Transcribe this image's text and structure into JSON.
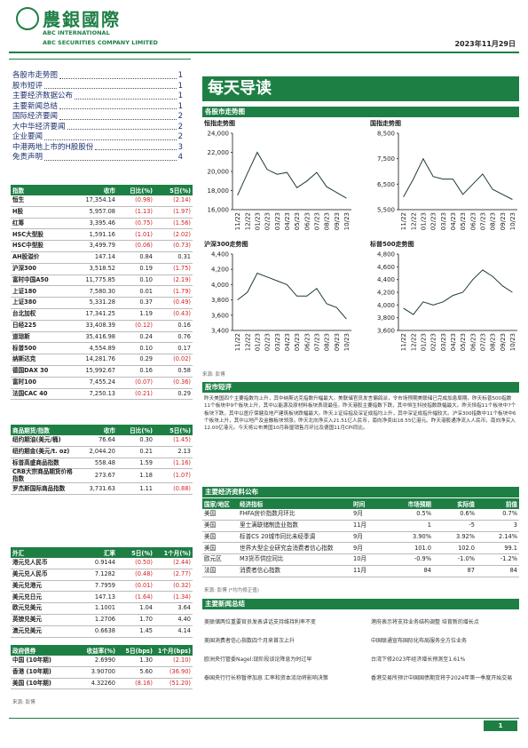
{
  "header": {
    "logo": "農銀國際",
    "company_en1": "ABC INTERNATIONAL",
    "company_en2": "ABC SECURITIES COMPANY LIMITED",
    "date": "2023年11月29日"
  },
  "toc": [
    {
      "label": "各股市走势图",
      "page": "1"
    },
    {
      "label": "股市短评",
      "page": "1"
    },
    {
      "label": "主要经济数据公布",
      "page": "1"
    },
    {
      "label": "主要新闻总结",
      "page": "1"
    },
    {
      "label": "国际经济要闻",
      "page": "2"
    },
    {
      "label": "大中华经济要闻",
      "page": "2"
    },
    {
      "label": "企业要闻",
      "page": "2"
    },
    {
      "label": "中港两地上市的H股股份",
      "page": "3"
    },
    {
      "label": "免责声明",
      "page": "4"
    }
  ],
  "title": "每天导读",
  "charts_section": "各股市走势图",
  "chart_data": [
    {
      "type": "line",
      "title": "恒指走势图",
      "color": "#1f3d28",
      "categories": [
        "11/22",
        "12/22",
        "01/23",
        "02/23",
        "03/23",
        "04/23",
        "05/23",
        "06/23",
        "07/23",
        "08/23",
        "09/23",
        "10/23"
      ],
      "values": [
        17500,
        19800,
        22000,
        20200,
        19700,
        19900,
        18300,
        19000,
        19900,
        18400,
        17800,
        17200
      ],
      "ylim": [
        16000,
        24000
      ],
      "yticks": [
        {
          "value": 16000,
          "label": "16,000"
        },
        {
          "value": 18000,
          "label": "18,000"
        },
        {
          "value": 20000,
          "label": "20,000"
        },
        {
          "value": 22000,
          "label": "22,000"
        },
        {
          "value": 24000,
          "label": "24,000"
        }
      ]
    },
    {
      "type": "line",
      "title": "国指走势图",
      "color": "#1f3d28",
      "categories": [
        "11/22",
        "12/22",
        "01/23",
        "02/23",
        "03/23",
        "04/23",
        "05/23",
        "06/23",
        "07/23",
        "08/23",
        "09/23",
        "10/23"
      ],
      "values": [
        6000,
        6700,
        7500,
        6800,
        6700,
        6700,
        6100,
        6500,
        6900,
        6300,
        6100,
        5900
      ],
      "ylim": [
        5500,
        8500
      ],
      "yticks": [
        {
          "value": 5500,
          "label": "5,500"
        },
        {
          "value": 6500,
          "label": "6,500"
        },
        {
          "value": 7500,
          "label": "7,500"
        },
        {
          "value": 8500,
          "label": "8,500"
        }
      ]
    },
    {
      "type": "line",
      "title": "沪深300走势图",
      "color": "#1f3d28",
      "categories": [
        "11/22",
        "12/22",
        "01/23",
        "02/23",
        "03/23",
        "04/23",
        "05/23",
        "06/23",
        "07/23",
        "08/23",
        "09/23",
        "10/23"
      ],
      "values": [
        3800,
        3900,
        4150,
        4100,
        4050,
        4000,
        3850,
        3850,
        3950,
        3750,
        3700,
        3550
      ],
      "ylim": [
        3400,
        4400
      ],
      "yticks": [
        {
          "value": 3400,
          "label": "3,400"
        },
        {
          "value": 3600,
          "label": "3,600"
        },
        {
          "value": 3800,
          "label": "3,800"
        },
        {
          "value": 4000,
          "label": "4,000"
        },
        {
          "value": 4200,
          "label": "4,200"
        },
        {
          "value": 4400,
          "label": "4,400"
        }
      ]
    },
    {
      "type": "line",
      "title": "标普500走势图",
      "color": "#1f3d28",
      "categories": [
        "11/22",
        "12/22",
        "01/23",
        "02/23",
        "03/23",
        "04/23",
        "05/23",
        "06/23",
        "07/23",
        "08/23",
        "09/23",
        "10/23"
      ],
      "values": [
        3950,
        3850,
        4050,
        4000,
        4050,
        4150,
        4200,
        4400,
        4550,
        4450,
        4300,
        4200
      ],
      "ylim": [
        3600,
        4800
      ],
      "yticks": [
        {
          "value": 3600,
          "label": "3,600"
        },
        {
          "value": 3800,
          "label": "3,800"
        },
        {
          "value": 4000,
          "label": "4,000"
        },
        {
          "value": 4200,
          "label": "4,200"
        },
        {
          "value": 4400,
          "label": "4,400"
        },
        {
          "value": 4600,
          "label": "4,600"
        },
        {
          "value": 4800,
          "label": "4,800"
        }
      ]
    }
  ],
  "charts_source": "来源: 彭博",
  "commentary": {
    "heading": "股市短评",
    "text": "昨天美国四个主要指数均上升，其中纳斯达克指数升幅最大。美联储官员发言偏鸽派，令市场预期美联储已完成加息周期。昨天标普500指数11个板块中9个板块上升，其中以能源及原材料板块表现最佳。昨天港股主要指数下跌，其中恒生科技指数跌幅最大。昨天恒指11个板块中7个板块下跌，其中以医疗保健及地产建筑板块跌幅最大。昨天上证综指及深证成指均上升，其中深证成指升幅较大。沪深300指数中11个板块中6个板块上升，其中以地产及金融板块领涨。昨天北向净买入21.51亿人民币，南向净卖出18.55亿港元。昨天港股通净流入人民币，南向净买入12.00亿港元。今天将公布美国10月新屋销售月环比及德国11月CPI同比。"
  },
  "index_table": {
    "header": [
      "指数",
      "收市",
      "日比(%)",
      "5日(%)"
    ],
    "rows": [
      [
        "恒生",
        "17,354.14",
        "(0.98)",
        "(2.14)"
      ],
      [
        "H股",
        "5,957.08",
        "(1.13)",
        "(1.97)"
      ],
      [
        "红筹",
        "3,395.46",
        "(0.75)",
        "(1.56)"
      ],
      [
        "HSC大型股",
        "1,591.16",
        "(1.01)",
        "(2.02)"
      ],
      [
        "HSC中型股",
        "3,499.79",
        "(0.06)",
        "(0.73)"
      ],
      [
        "AH股溢价",
        "147.14",
        "0.84",
        "0.31"
      ],
      [
        "沪深300",
        "3,518.52",
        "0.19",
        "(1.75)"
      ],
      [
        "富时中国A50",
        "11,775.85",
        "0.10",
        "(2.19)"
      ],
      [
        "上证180",
        "7,580.30",
        "0.01",
        "(1.79)"
      ],
      [
        "上证380",
        "5,331.28",
        "0.37",
        "(0.49)"
      ],
      [
        "台北加权",
        "17,341.25",
        "1.19",
        "(0.43)"
      ],
      [
        "日经225",
        "33,408.39",
        "(0.12)",
        "0.16"
      ],
      [
        "道琼斯",
        "35,416.98",
        "0.24",
        "0.76"
      ],
      [
        "标普500",
        "4,554.89",
        "0.10",
        "0.17"
      ],
      [
        "纳斯达克",
        "14,281.76",
        "0.29",
        "(0.02)"
      ],
      [
        "德国DAX 30",
        "15,992.67",
        "0.16",
        "0.58"
      ],
      [
        "富时100",
        "7,455.24",
        "(0.07)",
        "(0.36)"
      ],
      [
        "法国CAC 40",
        "7,250.13",
        "(0.21)",
        "0.29"
      ]
    ]
  },
  "commodity_table": {
    "header": [
      "商品期货/指数",
      "收市",
      "日比(%)",
      "5日(%)"
    ],
    "rows": [
      [
        "纽约期油(美元/桶)",
        "76.64",
        "0.30",
        "(1.45)"
      ],
      [
        "纽约期金(美元/t. oz)",
        "2,044.20",
        "0.21",
        "2.13"
      ],
      [
        "标普高盛商品指数",
        "558.48",
        "1.59",
        "(1.16)"
      ],
      [
        "CRB大宗商品期货价格指数",
        "273.67",
        "1.18",
        "(1.07)"
      ],
      [
        "罗杰斯国际商品指数",
        "3,731.63",
        "1.11",
        "(0.88)"
      ]
    ]
  },
  "fx_table": {
    "header": [
      "外汇",
      "汇率",
      "5日(%)",
      "1个月(%)"
    ],
    "rows": [
      [
        "港元兑人民币",
        "0.9144",
        "(0.50)",
        "(2.44)"
      ],
      [
        "美元兑人民币",
        "7.1282",
        "(0.48)",
        "(2.77)"
      ],
      [
        "美元兑港元",
        "7.7959",
        "(0.01)",
        "(0.32)"
      ],
      [
        "美元兑日元",
        "147.13",
        "(1.64)",
        "(1.34)"
      ],
      [
        "欧元兑美元",
        "1.1001",
        "1.04",
        "3.64"
      ],
      [
        "英镑兑美元",
        "1.2706",
        "1.70",
        "4.40"
      ],
      [
        "澳元兑美元",
        "0.6638",
        "1.45",
        "4.14"
      ]
    ]
  },
  "bond_table": {
    "header": [
      "政府债券",
      "收益率(%)",
      "5日(bps)",
      "1个月(bps)"
    ],
    "rows": [
      [
        "中国 (10年期)",
        "2.6990",
        "1.30",
        "(2.10)"
      ],
      [
        "香港 (10年期)",
        "3.90700",
        "5.60",
        "(36.90)"
      ],
      [
        "美国 (10年期)",
        "4.32260",
        "(8.16)",
        "(51.20)"
      ]
    ]
  },
  "left_source": "来源: 彭博",
  "econ": {
    "heading": "主要经济资料公布",
    "header": [
      "国家/地区",
      "经济指标",
      "时间",
      "市场预期",
      "实际值",
      "前值"
    ],
    "rows": [
      [
        "美国",
        "FHFA房价指数月环比",
        "9月",
        "0.5%",
        "0.6%",
        "0.7%"
      ],
      [
        "美国",
        "里士满联储制造业指数",
        "11月",
        "1",
        "-5",
        "3"
      ],
      [
        "美国",
        "标普CS 20城市同比未经季调",
        "9月",
        "3.90%",
        "3.92%",
        "2.14%"
      ],
      [
        "美国",
        "世界大型企业研究会消费者信心指数",
        "9月",
        "101.0",
        "102.0",
        "99.1"
      ],
      [
        "欧元区",
        "M3货币供应同比",
        "10月",
        "-0.9%",
        "-1.0%",
        "-1.2%"
      ],
      [
        "法国",
        "消费者信心指数",
        "11月",
        "84",
        "87",
        "84"
      ]
    ],
    "source": "来源: 彭博 (*均为修正值)"
  },
  "news": {
    "heading": "主要新闻总结",
    "left": [
      "美联储两位重要官员发表讲话支持维持利率不变",
      "美国消费者信心指数四个月来首次上升",
      "欧洲央行管委Nagel:现阶段谈论降息为时过早",
      "泰国央行行长称暂停加息 汇率和资本流动将影响决策"
    ],
    "right": [
      "港府表示将支持业务结构调整 培育新的增长点",
      "中国联通宣布国际化布局服务全方位业务",
      "台湾下修2023年经济增长预测至1.61%",
      "香港交易所预计中国国债期货将于2024年第一季度开始交易"
    ]
  },
  "page_number": "1"
}
